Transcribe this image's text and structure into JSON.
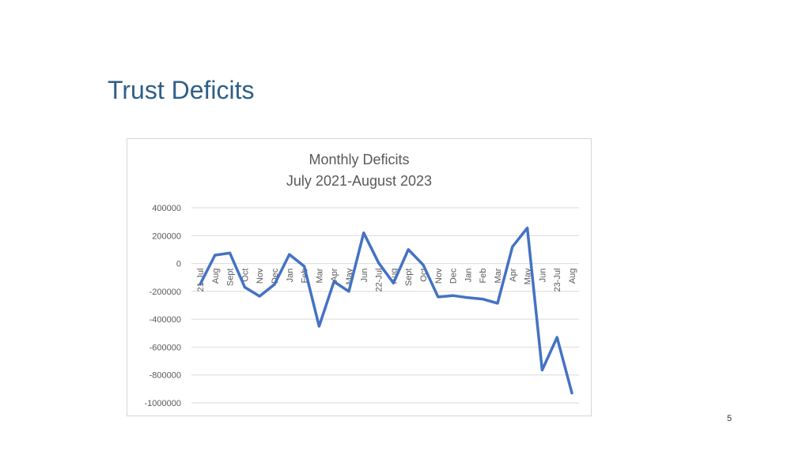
{
  "slide": {
    "title": "Trust Deficits",
    "page_number": "5"
  },
  "chart_data": {
    "type": "line",
    "title": "Monthly Deficits",
    "subtitle": "July 2021-August 2023",
    "xlabel": "",
    "ylabel": "",
    "ylim": [
      -1000000,
      400000
    ],
    "yticks": [
      400000,
      200000,
      0,
      -200000,
      -400000,
      -600000,
      -800000,
      -1000000
    ],
    "grid": true,
    "legend": "none",
    "line_color": "#4472c4",
    "categories": [
      "21-Jul",
      "Aug",
      "Sept",
      "Oct",
      "Nov",
      "Dec",
      "Jan",
      "Feb",
      "Mar",
      "Apr",
      "May",
      "Jun",
      "22-Jul",
      "Aug",
      "Sept",
      "Oct",
      "Nov",
      "Dec",
      "Jan",
      "Feb",
      "Mar",
      "Apr",
      "May",
      "Jun",
      "23-Jul",
      "Aug"
    ],
    "series": [
      {
        "values": [
          -150000,
          60000,
          75000,
          -170000,
          -235000,
          -150000,
          65000,
          -20000,
          -450000,
          -130000,
          -200000,
          220000,
          5000,
          -140000,
          100000,
          -10000,
          -240000,
          -230000,
          -245000,
          -255000,
          -285000,
          120000,
          255000,
          -765000,
          -530000,
          -930000
        ]
      }
    ]
  }
}
